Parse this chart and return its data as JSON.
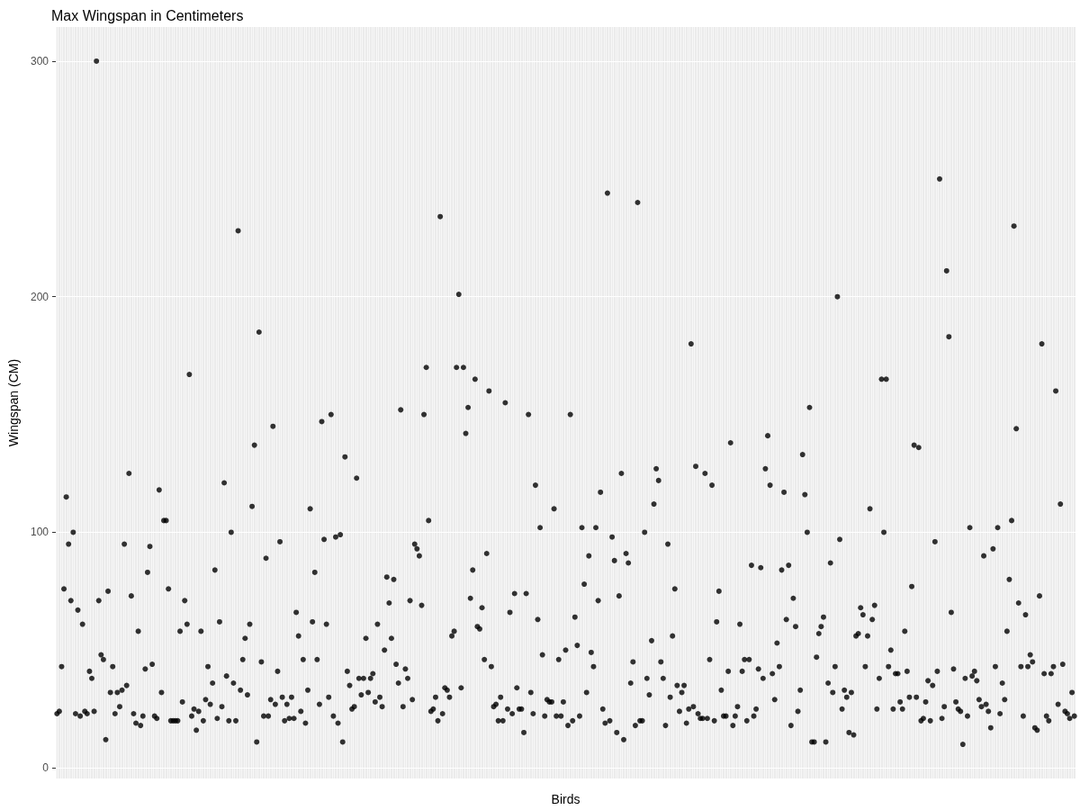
{
  "chart_data": {
    "type": "scatter",
    "title": "Max Wingspan in Centimeters",
    "xlabel": "Birds",
    "ylabel": "Wingspan (CM)",
    "ylim": [
      -4.5,
      314.5
    ],
    "yticks": [
      0,
      100,
      200,
      300
    ],
    "grid": true,
    "marker": "circle",
    "tick_labels": "y",
    "categories": [
      null,
      null,
      null,
      null,
      null,
      null,
      null,
      null,
      null,
      null,
      null,
      null,
      null,
      null,
      null,
      null,
      null,
      null,
      null,
      null,
      null,
      null,
      null,
      null,
      null,
      null,
      null,
      null,
      null,
      null,
      null,
      null,
      null,
      null,
      null,
      null,
      null,
      null,
      null,
      null,
      null,
      null,
      null,
      null,
      null,
      null,
      null,
      null,
      null,
      null,
      null,
      null,
      null,
      null,
      null,
      null,
      null,
      null,
      null,
      null,
      null,
      null,
      null,
      null,
      null,
      null,
      null,
      null,
      null,
      null,
      null,
      null,
      null,
      null,
      null,
      null,
      null,
      null,
      null,
      null,
      null,
      null,
      null,
      null,
      null,
      null,
      null,
      null,
      null,
      null,
      null,
      null,
      null,
      null,
      null,
      null,
      null,
      null,
      null,
      null,
      null,
      null,
      null,
      null,
      null,
      null,
      null,
      null,
      null,
      null,
      null,
      null,
      null,
      null,
      null,
      null,
      null,
      null,
      null,
      null,
      null,
      null,
      null,
      null,
      null,
      null,
      null,
      null,
      null,
      null,
      null,
      null,
      null,
      null,
      null,
      null,
      null,
      null,
      null,
      null,
      null,
      null,
      null,
      null,
      null,
      null,
      null,
      null,
      null,
      null,
      null,
      null,
      null,
      null,
      null,
      null,
      null,
      null,
      null,
      null,
      null,
      null,
      null,
      null,
      null,
      null,
      null,
      null,
      null,
      null,
      null,
      null,
      null,
      null,
      null,
      null,
      null,
      null,
      null,
      null,
      null,
      null,
      null,
      null,
      null,
      null,
      null,
      null,
      null,
      null,
      null,
      null,
      null,
      null,
      null,
      null,
      null,
      null,
      null,
      null,
      null,
      null,
      null,
      null,
      null,
      null,
      null,
      null,
      null,
      null,
      null,
      null,
      null,
      null,
      null,
      null,
      null,
      null,
      null,
      null,
      null,
      null,
      null,
      null,
      null,
      null,
      null,
      null,
      null,
      null,
      null,
      null,
      null,
      null,
      null,
      null,
      null,
      null,
      null,
      null,
      null,
      null,
      null,
      null,
      null,
      null,
      null,
      null,
      null,
      null,
      null,
      null,
      null,
      null,
      null,
      null,
      null,
      null,
      null,
      null,
      null,
      null,
      null,
      null,
      null,
      null,
      null,
      null,
      null,
      null,
      null,
      null,
      null,
      null,
      null,
      null,
      null,
      null,
      null,
      null,
      null,
      null,
      null,
      null,
      null,
      null,
      null,
      null,
      null,
      null,
      null,
      null,
      null,
      null,
      null,
      null,
      null,
      null,
      null,
      null,
      null,
      null,
      null,
      null,
      null,
      null,
      null,
      null,
      null,
      null,
      null,
      null,
      null,
      null,
      null,
      null,
      null,
      null,
      null,
      null,
      null,
      null,
      null,
      null,
      null,
      null,
      null,
      null,
      null,
      null,
      null,
      null,
      null,
      null,
      null,
      null,
      null,
      null,
      null,
      null,
      null,
      null,
      null,
      null,
      null,
      null,
      null,
      null,
      null,
      null,
      null,
      null,
      null,
      null,
      null,
      null,
      null,
      null,
      null,
      null,
      null,
      null,
      null,
      null,
      null,
      null,
      null,
      null,
      null,
      null,
      null,
      null,
      null,
      null,
      null,
      null,
      null,
      null,
      null,
      null,
      null,
      null,
      null,
      null,
      null,
      null,
      null,
      null,
      null,
      null,
      null,
      null,
      null,
      null,
      null,
      null,
      null,
      null,
      null,
      null,
      null,
      null,
      null,
      null,
      null,
      null,
      null,
      null,
      null,
      null,
      null,
      null,
      null,
      null,
      null,
      null,
      null,
      null,
      null,
      null,
      null,
      null,
      null,
      null,
      null,
      null,
      null,
      null,
      null,
      null,
      null,
      null,
      null,
      null,
      null,
      null,
      null,
      null,
      null
    ],
    "series": [
      {
        "color": "#000000",
        "values": [
          23,
          24,
          43,
          76,
          115,
          95,
          71,
          100,
          23,
          67,
          22,
          61,
          24,
          23,
          41,
          38,
          24,
          300,
          71,
          48,
          46,
          12,
          75,
          32,
          43,
          23,
          32,
          26,
          33,
          95,
          35,
          125,
          73,
          23,
          19,
          58,
          18,
          22,
          42,
          83,
          94,
          44,
          22,
          21,
          118,
          32,
          105,
          105,
          76,
          20,
          20,
          20,
          20,
          58,
          28,
          71,
          61,
          167,
          22,
          25,
          16,
          24,
          58,
          20,
          29,
          43,
          27,
          36,
          84,
          21,
          62,
          26,
          121,
          39,
          20,
          100,
          36,
          20,
          228,
          33,
          46,
          55,
          31,
          61,
          111,
          137,
          11,
          185,
          45,
          22,
          89,
          22,
          29,
          145,
          27,
          41,
          96,
          30,
          20,
          27,
          21,
          30,
          21,
          66,
          56,
          24,
          46,
          19,
          33,
          110,
          62,
          83,
          46,
          27,
          147,
          97,
          61,
          30,
          150,
          22,
          98,
          19,
          99,
          11,
          132,
          41,
          35,
          25,
          26,
          123,
          38,
          31,
          38,
          55,
          32,
          38,
          40,
          28,
          61,
          30,
          26,
          50,
          81,
          70,
          55,
          80,
          44,
          36,
          152,
          26,
          42,
          38,
          71,
          29,
          95,
          93,
          90,
          69,
          150,
          170,
          105,
          24,
          25,
          30,
          20,
          234,
          23,
          34,
          33,
          30,
          56,
          58,
          170,
          201,
          34,
          170,
          142,
          153,
          72,
          84,
          165,
          60,
          59,
          68,
          46,
          91,
          160,
          43,
          26,
          27,
          20,
          30,
          20,
          155,
          25,
          66,
          23,
          74,
          34,
          25,
          25,
          15,
          74,
          150,
          32,
          23,
          120,
          63,
          102,
          48,
          22,
          29,
          28,
          28,
          110,
          22,
          46,
          22,
          28,
          50,
          18,
          150,
          20,
          64,
          52,
          22,
          102,
          78,
          32,
          90,
          49,
          43,
          102,
          71,
          117,
          25,
          19,
          244,
          20,
          98,
          88,
          15,
          73,
          125,
          12,
          91,
          87,
          36,
          45,
          18,
          240,
          20,
          20,
          100,
          38,
          31,
          54,
          112,
          127,
          122,
          45,
          38,
          18,
          95,
          30,
          56,
          76,
          35,
          24,
          32,
          35,
          19,
          25,
          180,
          26,
          128,
          23,
          21,
          21,
          125,
          21,
          46,
          120,
          20,
          62,
          75,
          33,
          22,
          22,
          41,
          138,
          18,
          22,
          26,
          61,
          41,
          46,
          20,
          46,
          86,
          22,
          25,
          42,
          85,
          38,
          127,
          141,
          120,
          40,
          29,
          53,
          43,
          84,
          117,
          63,
          86,
          18,
          72,
          60,
          24,
          33,
          133,
          116,
          100,
          153,
          11,
          11,
          47,
          57,
          60,
          64,
          11,
          36,
          87,
          32,
          43,
          200,
          97,
          25,
          33,
          30,
          15,
          32,
          14,
          56,
          57,
          68,
          65,
          43,
          56,
          110,
          63,
          69,
          25,
          38,
          165,
          100,
          165,
          43,
          50,
          25,
          40,
          40,
          28,
          25,
          58,
          41,
          30,
          77,
          137,
          30,
          136,
          20,
          21,
          28,
          37,
          20,
          35,
          96,
          41,
          250,
          21,
          26,
          211,
          183,
          66,
          42,
          28,
          25,
          24,
          10,
          38,
          22,
          102,
          39,
          41,
          37,
          29,
          26,
          90,
          27,
          24,
          17,
          93,
          43,
          102,
          23,
          36,
          29,
          58,
          80,
          105,
          230,
          144,
          70,
          43,
          22,
          65,
          43,
          48,
          45,
          17,
          16,
          73,
          180,
          40,
          22,
          20,
          40,
          43,
          160,
          27,
          112,
          44,
          24,
          23,
          21,
          32,
          22
        ]
      }
    ]
  }
}
